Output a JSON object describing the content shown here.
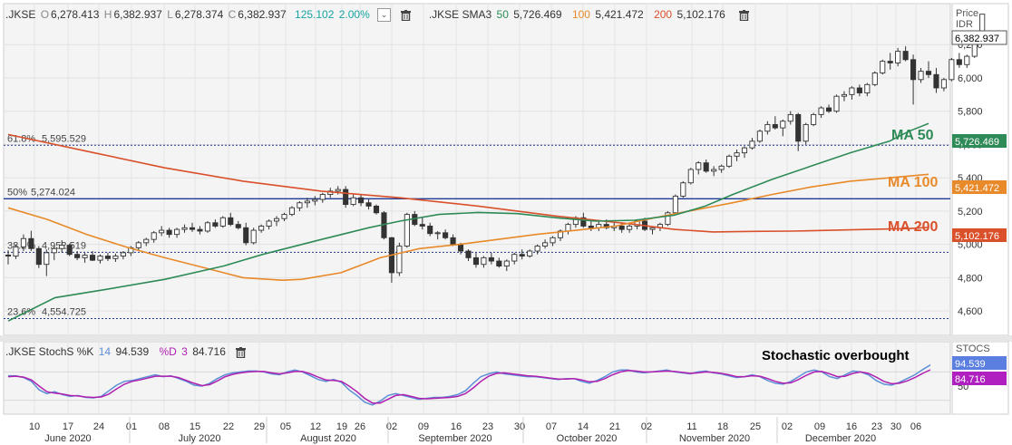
{
  "legend": {
    "symbol": ".JKSE",
    "o_label": "O",
    "o_val": "6,278.413",
    "h_label": "H",
    "h_val": "6,382.937",
    "l_label": "L",
    "l_val": "6,278.374",
    "c_label": "C",
    "c_val": "6,382.937",
    "chg": "125.102",
    "chg_pct": "2.00%",
    "sma_label": ".JKSE SMA3",
    "sma50_p": "50",
    "sma50_v": "5,726.469",
    "sma100_p": "100",
    "sma100_v": "5,421.472",
    "sma200_p": "200",
    "sma200_v": "5,102.176"
  },
  "stoch_legend": {
    "label": ".JKSE StochS %K",
    "k_period": "14",
    "k_val": "94.539",
    "d_label": "%D",
    "d_period": "3",
    "d_val": "84.716"
  },
  "axis": {
    "price_title": "Price",
    "currency": "IDR",
    "price_ticks": [
      "6,200",
      "6,000",
      "5,800",
      "5,600",
      "5,400",
      "5,200",
      "5,000",
      "4,800",
      "4,600"
    ],
    "stoch_title": "STOCS",
    "stoch_ticks": [
      "50"
    ]
  },
  "badges": {
    "last": "6,382.937",
    "ma50": "5,726.469",
    "ma100": "5,421.472",
    "ma200": "5,102.176",
    "k": "94.539",
    "d": "84.716"
  },
  "fib": [
    {
      "label": "61.8%",
      "value": "5,595.529"
    },
    {
      "label": "50%",
      "value": "5,274.024"
    },
    {
      "label": "38.2%",
      "value": "4,952.519"
    },
    {
      "label": "23.6%",
      "value": "4,554.725"
    }
  ],
  "annotations": {
    "ma50": "MA 50",
    "ma100": "MA 100",
    "ma200": "MA 200",
    "stoch": "Stochastic overbought"
  },
  "x_days": [
    "10",
    "17",
    "24",
    "01",
    "08",
    "15",
    "22",
    "29",
    "05",
    "12",
    "19",
    "26",
    "02",
    "09",
    "16",
    "23",
    "30",
    "07",
    "14",
    "21",
    "02",
    "11",
    "18",
    "25",
    "02",
    "09",
    "16",
    "23",
    "30",
    "06"
  ],
  "x_months": [
    "June 2020",
    "July 2020",
    "August 2020",
    "September 2020",
    "October 2020",
    "November 2020",
    "December 2020"
  ],
  "colors": {
    "ma50": "#2e8b57",
    "ma100": "#e8892a",
    "ma200": "#d9502b",
    "fib": "#1f3a93",
    "k": "#5b8fd6",
    "d": "#b020b0"
  },
  "chart_data": [
    {
      "type": "candlestick",
      "y_range": [
        4530,
        6430
      ],
      "candles": [
        [
          4936,
          4965,
          4880,
          4930
        ],
        [
          4930,
          4998,
          4912,
          4985
        ],
        [
          4985,
          5060,
          4960,
          5035
        ],
        [
          5035,
          5082,
          4960,
          4975
        ],
        [
          4975,
          4990,
          4858,
          4880
        ],
        [
          4880,
          4970,
          4810,
          4950
        ],
        [
          4950,
          4990,
          4905,
          4975
        ],
        [
          4975,
          5025,
          4950,
          4995
        ],
        [
          4995,
          5005,
          4930,
          4940
        ],
        [
          4940,
          4960,
          4905,
          4920
        ],
        [
          4920,
          4950,
          4890,
          4935
        ],
        [
          4935,
          4960,
          4900,
          4905
        ],
        [
          4905,
          4940,
          4885,
          4930
        ],
        [
          4930,
          4950,
          4900,
          4915
        ],
        [
          4915,
          4945,
          4895,
          4930
        ],
        [
          4930,
          4960,
          4910,
          4950
        ],
        [
          4950,
          4990,
          4930,
          4980
        ],
        [
          4980,
          5020,
          4965,
          5010
        ],
        [
          5010,
          5040,
          4990,
          5030
        ],
        [
          5030,
          5080,
          5010,
          5070
        ],
        [
          5070,
          5110,
          5050,
          5085
        ],
        [
          5085,
          5100,
          5040,
          5060
        ],
        [
          5060,
          5100,
          5040,
          5090
        ],
        [
          5090,
          5120,
          5070,
          5100
        ],
        [
          5100,
          5130,
          5075,
          5090
        ],
        [
          5090,
          5110,
          5060,
          5080
        ],
        [
          5080,
          5140,
          5070,
          5130
        ],
        [
          5130,
          5150,
          5100,
          5110
        ],
        [
          5110,
          5170,
          5100,
          5160
        ],
        [
          5160,
          5190,
          5110,
          5120
        ],
        [
          5120,
          5140,
          5090,
          5100
        ],
        [
          5100,
          5130,
          4995,
          5010
        ],
        [
          5010,
          5100,
          5000,
          5085
        ],
        [
          5085,
          5120,
          5070,
          5110
        ],
        [
          5110,
          5150,
          5090,
          5140
        ],
        [
          5140,
          5170,
          5110,
          5155
        ],
        [
          5155,
          5190,
          5140,
          5180
        ],
        [
          5180,
          5230,
          5170,
          5220
        ],
        [
          5220,
          5260,
          5200,
          5250
        ],
        [
          5250,
          5280,
          5220,
          5260
        ],
        [
          5260,
          5290,
          5235,
          5270
        ],
        [
          5270,
          5310,
          5250,
          5300
        ],
        [
          5300,
          5340,
          5280,
          5320
        ],
        [
          5320,
          5350,
          5300,
          5330
        ],
        [
          5330,
          5350,
          5220,
          5240
        ],
        [
          5240,
          5300,
          5230,
          5280
        ],
        [
          5280,
          5300,
          5230,
          5250
        ],
        [
          5250,
          5270,
          5210,
          5230
        ],
        [
          5230,
          5240,
          5180,
          5190
        ],
        [
          5190,
          5200,
          5030,
          5040
        ],
        [
          5040,
          5045,
          4770,
          4830
        ],
        [
          4830,
          5010,
          4810,
          4990
        ],
        [
          4990,
          5190,
          4980,
          5180
        ],
        [
          5180,
          5200,
          5110,
          5120
        ],
        [
          5120,
          5160,
          5090,
          5110
        ],
        [
          5110,
          5130,
          5050,
          5065
        ],
        [
          5065,
          5080,
          5030,
          5070
        ],
        [
          5070,
          5090,
          5030,
          5040
        ],
        [
          5040,
          5060,
          4990,
          5000
        ],
        [
          5000,
          5010,
          4940,
          4960
        ],
        [
          4960,
          4970,
          4900,
          4920
        ],
        [
          4920,
          4950,
          4860,
          4880
        ],
        [
          4880,
          4930,
          4860,
          4920
        ],
        [
          4920,
          4950,
          4880,
          4900
        ],
        [
          4900,
          4920,
          4860,
          4870
        ],
        [
          4870,
          4910,
          4840,
          4900
        ],
        [
          4900,
          4950,
          4880,
          4940
        ],
        [
          4940,
          4970,
          4910,
          4930
        ],
        [
          4930,
          4970,
          4920,
          4960
        ],
        [
          4960,
          5000,
          4940,
          4990
        ],
        [
          4990,
          5030,
          4975,
          5010
        ],
        [
          5010,
          5050,
          4990,
          5040
        ],
        [
          5040,
          5090,
          5020,
          5080
        ],
        [
          5080,
          5130,
          5060,
          5120
        ],
        [
          5120,
          5170,
          5100,
          5160
        ],
        [
          5160,
          5190,
          5100,
          5110
        ],
        [
          5110,
          5140,
          5080,
          5100
        ],
        [
          5100,
          5140,
          5080,
          5120
        ],
        [
          5120,
          5150,
          5090,
          5100
        ],
        [
          5100,
          5130,
          5080,
          5110
        ],
        [
          5110,
          5130,
          5070,
          5090
        ],
        [
          5090,
          5120,
          5070,
          5110
        ],
        [
          5110,
          5150,
          5090,
          5140
        ],
        [
          5140,
          5160,
          5080,
          5090
        ],
        [
          5090,
          5110,
          5060,
          5100
        ],
        [
          5100,
          5130,
          5080,
          5120
        ],
        [
          5120,
          5200,
          5110,
          5190
        ],
        [
          5190,
          5300,
          5180,
          5290
        ],
        [
          5290,
          5380,
          5280,
          5370
        ],
        [
          5370,
          5460,
          5360,
          5450
        ],
        [
          5450,
          5500,
          5420,
          5490
        ],
        [
          5490,
          5510,
          5430,
          5440
        ],
        [
          5440,
          5470,
          5410,
          5450
        ],
        [
          5450,
          5480,
          5430,
          5470
        ],
        [
          5470,
          5540,
          5460,
          5530
        ],
        [
          5530,
          5570,
          5500,
          5550
        ],
        [
          5550,
          5590,
          5520,
          5580
        ],
        [
          5580,
          5640,
          5570,
          5620
        ],
        [
          5620,
          5690,
          5610,
          5680
        ],
        [
          5680,
          5740,
          5660,
          5720
        ],
        [
          5720,
          5770,
          5690,
          5700
        ],
        [
          5700,
          5750,
          5650,
          5740
        ],
        [
          5740,
          5800,
          5720,
          5780
        ],
        [
          5780,
          5790,
          5560,
          5620
        ],
        [
          5620,
          5730,
          5600,
          5720
        ],
        [
          5720,
          5790,
          5710,
          5780
        ],
        [
          5780,
          5830,
          5760,
          5820
        ],
        [
          5820,
          5840,
          5790,
          5800
        ],
        [
          5800,
          5900,
          5790,
          5890
        ],
        [
          5890,
          5920,
          5860,
          5900
        ],
        [
          5900,
          5950,
          5870,
          5940
        ],
        [
          5940,
          5960,
          5890,
          5910
        ],
        [
          5910,
          5970,
          5890,
          5960
        ],
        [
          5960,
          6040,
          5950,
          6030
        ],
        [
          6030,
          6110,
          6020,
          6100
        ],
        [
          6100,
          6150,
          6050,
          6090
        ],
        [
          6090,
          6180,
          6070,
          6160
        ],
        [
          6160,
          6190,
          6100,
          6110
        ],
        [
          6110,
          6140,
          5840,
          5990
        ],
        [
          5990,
          6060,
          5970,
          6040
        ],
        [
          6040,
          6100,
          6000,
          6020
        ],
        [
          6020,
          6060,
          5910,
          5940
        ],
        [
          5940,
          6000,
          5920,
          5990
        ],
        [
          5990,
          6120,
          5980,
          6110
        ],
        [
          6110,
          6150,
          6060,
          6080
        ],
        [
          6080,
          6140,
          6060,
          6130
        ],
        [
          6130,
          6260,
          6120,
          6250
        ],
        [
          6278,
          6383,
          6278,
          6383
        ]
      ],
      "ma50": [
        [
          0,
          4540
        ],
        [
          12,
          4680
        ],
        [
          25,
          4730
        ],
        [
          40,
          4790
        ],
        [
          55,
          4870
        ],
        [
          65,
          4940
        ],
        [
          80,
          5030
        ],
        [
          92,
          5100
        ],
        [
          100,
          5140
        ],
        [
          110,
          5180
        ],
        [
          120,
          5192
        ],
        [
          130,
          5185
        ],
        [
          140,
          5160
        ],
        [
          150,
          5140
        ],
        [
          160,
          5145
        ],
        [
          170,
          5175
        ],
        [
          178,
          5230
        ],
        [
          185,
          5300
        ],
        [
          195,
          5390
        ],
        [
          205,
          5470
        ],
        [
          215,
          5550
        ],
        [
          225,
          5620
        ],
        [
          230,
          5680
        ],
        [
          235,
          5726
        ]
      ],
      "ma100": [
        [
          0,
          5220
        ],
        [
          10,
          5150
        ],
        [
          20,
          5060
        ],
        [
          30,
          4985
        ],
        [
          40,
          4920
        ],
        [
          50,
          4860
        ],
        [
          60,
          4800
        ],
        [
          70,
          4785
        ],
        [
          75,
          4790
        ],
        [
          85,
          4830
        ],
        [
          95,
          4920
        ],
        [
          105,
          4975
        ],
        [
          115,
          5000
        ],
        [
          125,
          5030
        ],
        [
          135,
          5060
        ],
        [
          145,
          5085
        ],
        [
          155,
          5110
        ],
        [
          165,
          5160
        ],
        [
          175,
          5205
        ],
        [
          185,
          5250
        ],
        [
          195,
          5300
        ],
        [
          205,
          5345
        ],
        [
          215,
          5380
        ],
        [
          225,
          5400
        ],
        [
          235,
          5421
        ]
      ],
      "ma200": [
        [
          0,
          5660
        ],
        [
          20,
          5560
        ],
        [
          40,
          5460
        ],
        [
          60,
          5380
        ],
        [
          80,
          5320
        ],
        [
          100,
          5280
        ],
        [
          120,
          5230
        ],
        [
          140,
          5170
        ],
        [
          160,
          5120
        ],
        [
          170,
          5090
        ],
        [
          180,
          5075
        ],
        [
          190,
          5078
        ],
        [
          200,
          5080
        ],
        [
          210,
          5085
        ],
        [
          220,
          5090
        ],
        [
          230,
          5095
        ],
        [
          235,
          5102
        ]
      ],
      "fib_levels": [
        5595.529,
        5274.024,
        4952.519,
        4554.725
      ],
      "last_close": 6382.937,
      "ma50_last": 5726.469,
      "ma100_last": 5421.472,
      "ma200_last": 5102.176
    },
    {
      "type": "line",
      "title": "StochS %K 14 %D 3",
      "k": [
        72,
        72,
        68,
        60,
        42,
        34,
        38,
        32,
        28,
        30,
        26,
        25,
        28,
        40,
        52,
        60,
        62,
        66,
        70,
        74,
        70,
        72,
        66,
        60,
        52,
        50,
        56,
        66,
        74,
        78,
        80,
        82,
        82,
        80,
        76,
        74,
        80,
        84,
        80,
        72,
        64,
        60,
        64,
        58,
        42,
        30,
        16,
        10,
        18,
        30,
        34,
        30,
        26,
        22,
        24,
        26,
        26,
        28,
        32,
        40,
        56,
        70,
        76,
        80,
        76,
        74,
        72,
        70,
        70,
        68,
        66,
        64,
        66,
        66,
        60,
        56,
        62,
        70,
        80,
        84,
        84,
        80,
        78,
        80,
        82,
        84,
        80,
        78,
        76,
        80,
        82,
        78,
        76,
        72,
        68,
        70,
        74,
        70,
        62,
        56,
        54,
        60,
        70,
        80,
        84,
        80,
        70,
        66,
        74,
        82,
        80,
        74,
        62,
        54,
        52,
        58,
        66,
        74,
        85,
        95
      ],
      "d": [
        70,
        71,
        69,
        63,
        50,
        38,
        35,
        33,
        30,
        29,
        27,
        26,
        27,
        33,
        44,
        54,
        60,
        63,
        67,
        71,
        71,
        71,
        68,
        62,
        56,
        51,
        53,
        61,
        70,
        75,
        78,
        80,
        81,
        81,
        78,
        76,
        78,
        81,
        81,
        76,
        69,
        63,
        62,
        60,
        50,
        38,
        24,
        14,
        14,
        22,
        30,
        32,
        28,
        24,
        23,
        24,
        25,
        26,
        28,
        34,
        46,
        60,
        71,
        77,
        78,
        76,
        74,
        72,
        71,
        69,
        67,
        65,
        65,
        66,
        63,
        59,
        60,
        66,
        74,
        80,
        83,
        82,
        80,
        80,
        81,
        82,
        81,
        79,
        77,
        78,
        80,
        79,
        77,
        74,
        70,
        70,
        72,
        71,
        66,
        60,
        56,
        57,
        64,
        73,
        80,
        81,
        76,
        70,
        71,
        77,
        80,
        77,
        69,
        60,
        55,
        56,
        61,
        68,
        77,
        84.7
      ]
    }
  ]
}
